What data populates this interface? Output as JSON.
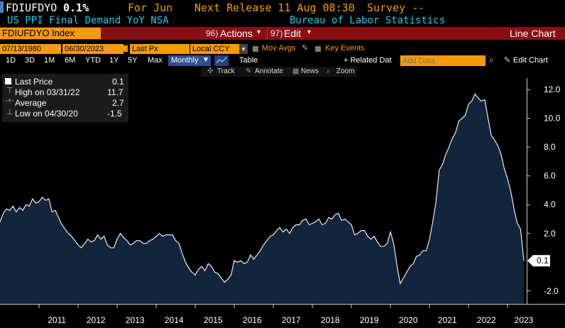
{
  "header": {
    "ticker": "FDIUFDYO",
    "last_value": "0.1%",
    "for_label": "For Jun",
    "next_release": "Next Release 11 Aug 08:30",
    "survey": "Survey --"
  },
  "subheader": {
    "description": "US PPI Final Demand YoY NSA",
    "source": "Bureau of Labor Statistics"
  },
  "toolbar": {
    "security": "FDIUFDYO Index",
    "suggested": "Suggested Charts",
    "actions_num": "96)",
    "actions": "Actions",
    "edit_num": "97)",
    "edit": "Edit",
    "chart_type": "Line Chart"
  },
  "controls": {
    "start_date": "07/13/1980",
    "end_date": "06/30/2023",
    "field": "Last Px",
    "currency": "Local CCY",
    "mov_avgs": "Mov Avgs",
    "key_events": "Key Events"
  },
  "periods": {
    "buttons": [
      "1D",
      "3D",
      "1M",
      "6M",
      "YTD",
      "1Y",
      "5Y",
      "Max"
    ],
    "frequency": "Monthly",
    "table": "Table",
    "related_data": "+ Related Dat",
    "add_data_placeholder": "Add Data",
    "edit_chart": "Edit Chart"
  },
  "tools": {
    "track": "Track",
    "annotate": "Annotate",
    "news": "News",
    "zoom": "Zoom"
  },
  "legend": {
    "last_price_label": "Last Price",
    "last_price_value": "0.1",
    "high_label": "High on 03/31/22",
    "high_value": "11.7",
    "average_label": "Average",
    "average_value": "2.7",
    "low_label": "Low on 04/30/20",
    "low_value": "-1.5"
  },
  "colors": {
    "accent_orange": "#f39b0c",
    "header_cyan": "#25c8e8",
    "toolbar_red": "#8c0d12",
    "area_fill": "#13243d"
  },
  "chart_data": {
    "type": "area",
    "x_start": "2010-01",
    "x_end": "2023-06",
    "frequency": "monthly",
    "x_tick_labels": [
      "2011",
      "2012",
      "2013",
      "2014",
      "2015",
      "2016",
      "2017",
      "2018",
      "2019",
      "2020",
      "2021",
      "2022",
      "2023"
    ],
    "y_tick_labels": [
      "12.0",
      "10.0",
      "8.0",
      "6.0",
      "4.0",
      "2.0",
      "-2.0"
    ],
    "ylim": [
      -2.9,
      12.8
    ],
    "last_label": "0.1",
    "grid": false,
    "series": [
      {
        "values": [
          2.8,
          3.4,
          3.7,
          3.6,
          3.9,
          3.5,
          3.8,
          3.6,
          4.0,
          3.9,
          4.4,
          4.1,
          4.2,
          4.5,
          4.3,
          4.4,
          3.5,
          3.6,
          3.1,
          2.6,
          2.3,
          2.0,
          1.8,
          1.5,
          1.2,
          1.0,
          1.3,
          1.6,
          1.4,
          1.5,
          1.9,
          1.6,
          1.8,
          1.2,
          1.0,
          1.0,
          1.6,
          2.0,
          1.7,
          1.5,
          1.2,
          1.3,
          1.5,
          1.5,
          1.3,
          1.3,
          1.5,
          1.6,
          1.8,
          2.0,
          1.8,
          1.9,
          1.9,
          1.9,
          1.5,
          1.3,
          0.6,
          0.0,
          -0.4,
          -0.7,
          -0.9,
          -0.5,
          -0.3,
          -0.6,
          -0.1,
          -0.3,
          -0.7,
          -0.8,
          -1.1,
          -1.4,
          -1.2,
          -0.9,
          0.1,
          0.0,
          0.1,
          -0.1,
          0.0,
          0.5,
          0.2,
          0.5,
          0.8,
          1.2,
          1.5,
          1.8,
          1.9,
          2.2,
          2.4,
          2.1,
          2.3,
          2.0,
          2.4,
          2.6,
          2.6,
          2.9,
          3.0,
          2.6,
          2.7,
          2.8,
          3.0,
          2.6,
          2.7,
          3.1,
          3.0,
          3.3,
          3.4,
          2.9,
          3.0,
          2.8,
          2.6,
          1.9,
          2.0,
          2.2,
          2.2,
          1.8,
          1.6,
          1.8,
          1.4,
          1.1,
          1.1,
          1.3,
          2.1,
          1.3,
          -0.2,
          -1.5,
          -1.1,
          -0.7,
          -0.3,
          -0.1,
          0.4,
          0.5,
          0.8,
          0.8,
          1.6,
          2.8,
          4.2,
          6.4,
          6.8,
          7.5,
          8.0,
          8.6,
          9.0,
          9.8,
          10.0,
          10.2,
          11.0,
          11.2,
          11.7,
          11.4,
          11.2,
          11.3,
          10.0,
          8.8,
          8.5,
          8.1,
          7.5,
          6.5,
          5.8,
          4.9,
          3.7,
          2.7,
          2.3,
          0.1
        ]
      }
    ]
  }
}
